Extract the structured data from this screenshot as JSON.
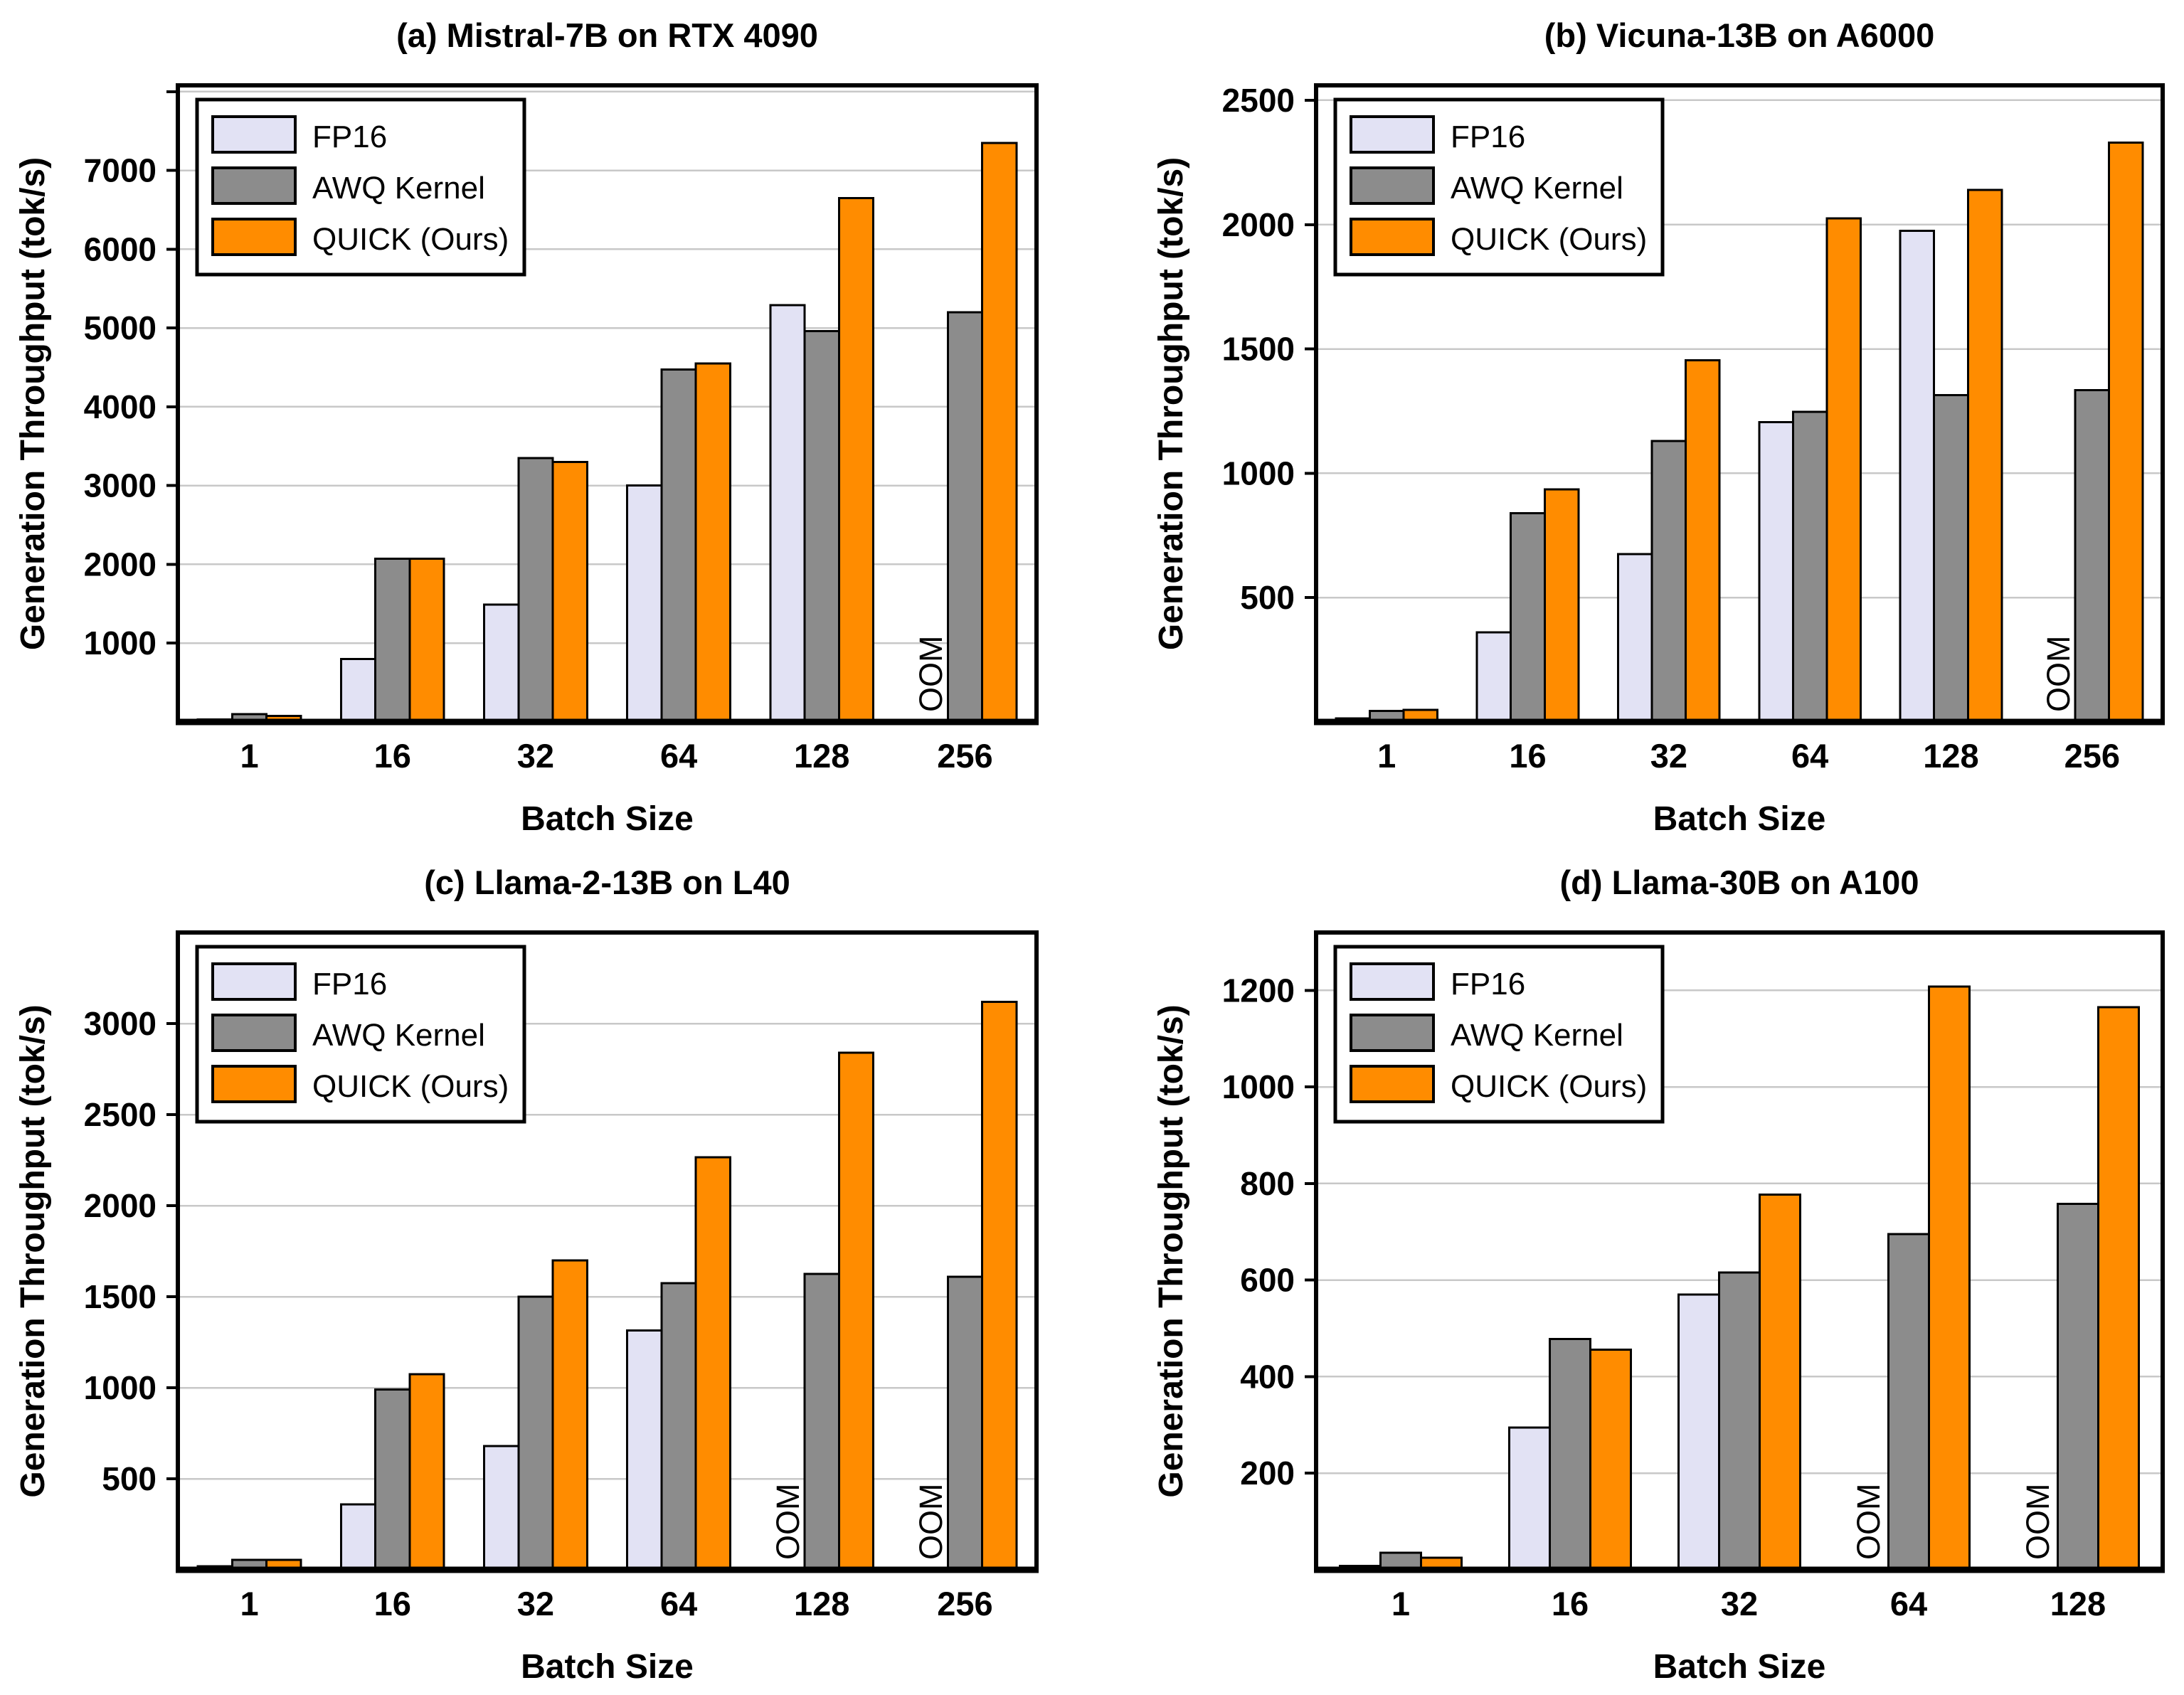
{
  "figure": {
    "background": "#FFFFFF"
  },
  "colors": {
    "fp16": "#E2E2F4",
    "awq": "#8C8C8C",
    "quick": "#FF8C00",
    "outline": "#000000",
    "frame": "#000000",
    "grid": "#C8C8C8",
    "text": "#000000",
    "legend_bg": "#FFFFFF"
  },
  "oom_label": "OOM",
  "legend_labels": [
    "FP16",
    "AWQ Kernel",
    "QUICK (Ours)"
  ],
  "chart_data": [
    {
      "type": "bar",
      "title": "(a) Mistral-7B on RTX 4090",
      "xlabel": "Batch Size",
      "ylabel": "Generation Throughput (tok/s)",
      "categories": [
        "1",
        "16",
        "32",
        "64",
        "128",
        "256"
      ],
      "series": [
        {
          "name": "FP16",
          "color_key": "fp16",
          "values": [
            30,
            800,
            1490,
            3000,
            5290,
            null
          ]
        },
        {
          "name": "AWQ Kernel",
          "color_key": "awq",
          "values": [
            100,
            2070,
            3350,
            4475,
            4960,
            5200
          ]
        },
        {
          "name": "QUICK (Ours)",
          "color_key": "quick",
          "values": [
            75,
            2070,
            3300,
            4550,
            6650,
            7350
          ]
        }
      ],
      "yticks": [
        {
          "value": 1000,
          "label": "1000"
        },
        {
          "value": 2000,
          "label": "2000"
        },
        {
          "value": 3000,
          "label": "3000"
        },
        {
          "value": 4000,
          "label": "4000"
        },
        {
          "value": 5000,
          "label": "5000"
        },
        {
          "value": 6000,
          "label": "6000"
        },
        {
          "value": 7000,
          "label": "7000"
        },
        {
          "value": 8000,
          "label": ""
        }
      ],
      "ylim": [
        0,
        8080
      ],
      "grid": "horizontal",
      "legend_position": "upper left",
      "oom_annotations": [
        {
          "series": "FP16",
          "category": "256"
        }
      ]
    },
    {
      "type": "bar",
      "title": "(b) Vicuna-13B on A6000",
      "xlabel": "Batch Size",
      "ylabel": "Generation Throughput (tok/s)",
      "categories": [
        "1",
        "16",
        "32",
        "64",
        "128",
        "256"
      ],
      "series": [
        {
          "name": "FP16",
          "color_key": "fp16",
          "values": [
            15,
            360,
            675,
            1205,
            1975,
            null
          ]
        },
        {
          "name": "AWQ Kernel",
          "color_key": "awq",
          "values": [
            45,
            840,
            1130,
            1247,
            1315,
            1335
          ]
        },
        {
          "name": "QUICK (Ours)",
          "color_key": "quick",
          "values": [
            48,
            935,
            1455,
            2025,
            2140,
            2330
          ]
        }
      ],
      "yticks": [
        {
          "value": 500,
          "label": "500"
        },
        {
          "value": 1000,
          "label": "1000"
        },
        {
          "value": 1500,
          "label": "1500"
        },
        {
          "value": 2000,
          "label": "2000"
        },
        {
          "value": 2500,
          "label": "2500"
        }
      ],
      "ylim": [
        0,
        2560
      ],
      "grid": "horizontal",
      "legend_position": "upper left",
      "oom_annotations": [
        {
          "series": "FP16",
          "category": "256"
        }
      ]
    },
    {
      "type": "bar",
      "title": "(c) Llama-2-13B on L40",
      "xlabel": "Batch Size",
      "ylabel": "Generation Throughput (tok/s)",
      "categories": [
        "1",
        "16",
        "32",
        "64",
        "128",
        "256"
      ],
      "series": [
        {
          "name": "FP16",
          "color_key": "fp16",
          "values": [
            20,
            360,
            680,
            1315,
            null,
            null
          ]
        },
        {
          "name": "AWQ Kernel",
          "color_key": "awq",
          "values": [
            55,
            990,
            1500,
            1575,
            1625,
            1610
          ]
        },
        {
          "name": "QUICK (Ours)",
          "color_key": "quick",
          "values": [
            55,
            1075,
            1700,
            2265,
            2840,
            3120
          ]
        }
      ],
      "yticks": [
        {
          "value": 500,
          "label": "500"
        },
        {
          "value": 1000,
          "label": "1000"
        },
        {
          "value": 1500,
          "label": "1500"
        },
        {
          "value": 2000,
          "label": "2000"
        },
        {
          "value": 2500,
          "label": "2500"
        },
        {
          "value": 3000,
          "label": "3000"
        }
      ],
      "ylim": [
        0,
        3500
      ],
      "grid": "horizontal",
      "legend_position": "upper left",
      "oom_annotations": [
        {
          "series": "FP16",
          "category": "128"
        },
        {
          "series": "FP16",
          "category": "256"
        }
      ]
    },
    {
      "type": "bar",
      "title": "(d) Llama-30B on A100",
      "xlabel": "Batch Size",
      "ylabel": "Generation Throughput (tok/s)",
      "categories": [
        "1",
        "16",
        "32",
        "64",
        "128"
      ],
      "series": [
        {
          "name": "FP16",
          "color_key": "fp16",
          "values": [
            8,
            295,
            570,
            null,
            null
          ]
        },
        {
          "name": "AWQ Kernel",
          "color_key": "awq",
          "values": [
            35,
            478,
            616,
            695,
            758
          ]
        },
        {
          "name": "QUICK (Ours)",
          "color_key": "quick",
          "values": [
            25,
            456,
            777,
            1208,
            1165
          ]
        }
      ],
      "yticks": [
        {
          "value": 200,
          "label": "200"
        },
        {
          "value": 400,
          "label": "400"
        },
        {
          "value": 600,
          "label": "600"
        },
        {
          "value": 800,
          "label": "800"
        },
        {
          "value": 1000,
          "label": "1000"
        },
        {
          "value": 1200,
          "label": "1200"
        }
      ],
      "ylim": [
        0,
        1320
      ],
      "grid": "horizontal",
      "legend_position": "upper left",
      "oom_annotations": [
        {
          "series": "FP16",
          "category": "64"
        },
        {
          "series": "FP16",
          "category": "128"
        }
      ]
    }
  ]
}
